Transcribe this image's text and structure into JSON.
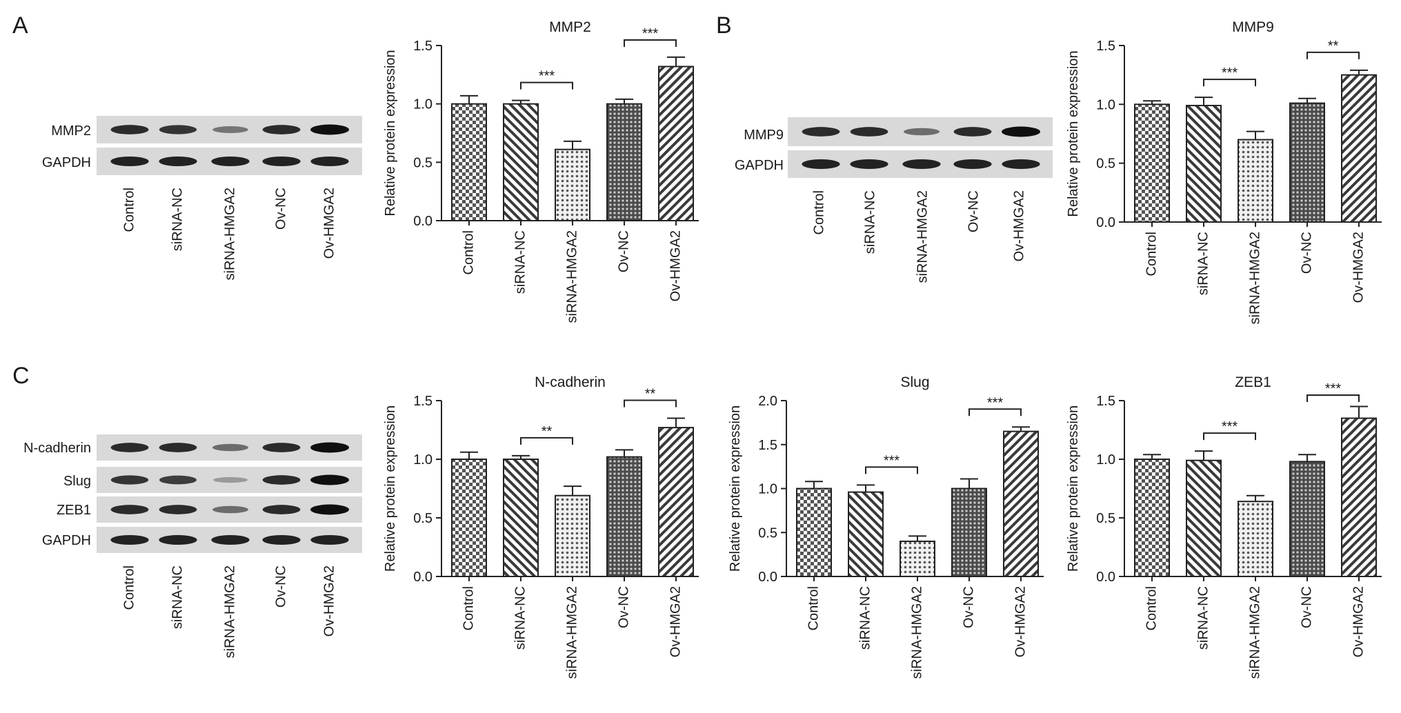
{
  "panels": [
    {
      "id": "A",
      "label": "A"
    },
    {
      "id": "B",
      "label": "B"
    },
    {
      "id": "C",
      "label": "C"
    }
  ],
  "blots": [
    {
      "panel": "A",
      "proteins": [
        "MMP2",
        "GAPDH"
      ],
      "lanes": [
        "Control",
        "siRNA-NC",
        "siRNA-HMGA2",
        "Ov-NC",
        "Ov-HMGA2"
      ],
      "intensity": [
        [
          0.85,
          0.8,
          0.45,
          0.85,
          1.0
        ],
        [
          0.9,
          0.9,
          0.9,
          0.9,
          0.9
        ]
      ]
    },
    {
      "panel": "B",
      "proteins": [
        "MMP9",
        "GAPDH"
      ],
      "lanes": [
        "Control",
        "siRNA-NC",
        "siRNA-HMGA2",
        "Ov-NC",
        "Ov-HMGA2"
      ],
      "intensity": [
        [
          0.85,
          0.85,
          0.5,
          0.85,
          1.0
        ],
        [
          0.9,
          0.9,
          0.9,
          0.9,
          0.9
        ]
      ]
    },
    {
      "panel": "C",
      "proteins": [
        "N-cadherin",
        "Slug",
        "ZEB1",
        "GAPDH"
      ],
      "lanes": [
        "Control",
        "siRNA-NC",
        "siRNA-HMGA2",
        "Ov-NC",
        "Ov-HMGA2"
      ],
      "intensity": [
        [
          0.85,
          0.85,
          0.5,
          0.85,
          1.0
        ],
        [
          0.8,
          0.75,
          0.25,
          0.85,
          1.0
        ],
        [
          0.85,
          0.85,
          0.5,
          0.85,
          1.0
        ],
        [
          0.9,
          0.9,
          0.9,
          0.9,
          0.9
        ]
      ]
    }
  ],
  "colors": {
    "bar_fill": "#ffffff",
    "pattern_ink": "#3a3a3a",
    "blot_background": "#d9d9d9",
    "band": "#141414"
  },
  "chart_data": [
    {
      "type": "bar",
      "panel": "A",
      "title": "MMP2",
      "ylabel": "Relative protein expression",
      "categories": [
        "Control",
        "siRNA-NC",
        "siRNA-HMGA2",
        "Ov-NC",
        "Ov-HMGA2"
      ],
      "values": [
        1.0,
        1.0,
        0.61,
        1.0,
        1.32
      ],
      "errors": [
        0.07,
        0.03,
        0.07,
        0.04,
        0.08
      ],
      "ylim": [
        0,
        1.5
      ],
      "yticks": [
        "0.0",
        "0.5",
        "1.0",
        "1.5"
      ],
      "significance": [
        {
          "from": 1,
          "to": 2,
          "label": "***"
        },
        {
          "from": 3,
          "to": 4,
          "label": "***"
        }
      ]
    },
    {
      "type": "bar",
      "panel": "B",
      "title": "MMP9",
      "ylabel": "Relative protein expression",
      "categories": [
        "Control",
        "siRNA-NC",
        "siRNA-HMGA2",
        "Ov-NC",
        "Ov-HMGA2"
      ],
      "values": [
        1.0,
        0.99,
        0.7,
        1.01,
        1.25
      ],
      "errors": [
        0.03,
        0.07,
        0.07,
        0.04,
        0.04
      ],
      "ylim": [
        0,
        1.5
      ],
      "yticks": [
        "0.0",
        "0.5",
        "1.0",
        "1.5"
      ],
      "significance": [
        {
          "from": 1,
          "to": 2,
          "label": "***"
        },
        {
          "from": 3,
          "to": 4,
          "label": "**"
        }
      ]
    },
    {
      "type": "bar",
      "panel": "C",
      "title": "N-cadherin",
      "ylabel": "Relative protein expression",
      "categories": [
        "Control",
        "siRNA-NC",
        "siRNA-HMGA2",
        "Ov-NC",
        "Ov-HMGA2"
      ],
      "values": [
        1.0,
        1.0,
        0.69,
        1.02,
        1.27
      ],
      "errors": [
        0.06,
        0.03,
        0.08,
        0.06,
        0.08
      ],
      "ylim": [
        0,
        1.5
      ],
      "yticks": [
        "0.0",
        "0.5",
        "1.0",
        "1.5"
      ],
      "significance": [
        {
          "from": 1,
          "to": 2,
          "label": "**"
        },
        {
          "from": 3,
          "to": 4,
          "label": "**"
        }
      ]
    },
    {
      "type": "bar",
      "panel": "C",
      "title": "Slug",
      "ylabel": "Relative protein expression",
      "categories": [
        "Control",
        "siRNA-NC",
        "siRNA-HMGA2",
        "Ov-NC",
        "Ov-HMGA2"
      ],
      "values": [
        1.0,
        0.96,
        0.4,
        1.0,
        1.65
      ],
      "errors": [
        0.08,
        0.08,
        0.06,
        0.11,
        0.05
      ],
      "ylim": [
        0,
        2.0
      ],
      "yticks": [
        "0.0",
        "0.5",
        "1.0",
        "1.5",
        "2.0"
      ],
      "significance": [
        {
          "from": 1,
          "to": 2,
          "label": "***"
        },
        {
          "from": 3,
          "to": 4,
          "label": "***"
        }
      ]
    },
    {
      "type": "bar",
      "panel": "C",
      "title": "ZEB1",
      "ylabel": "Relative protein expression",
      "categories": [
        "Control",
        "siRNA-NC",
        "siRNA-HMGA2",
        "Ov-NC",
        "Ov-HMGA2"
      ],
      "values": [
        1.0,
        0.99,
        0.64,
        0.98,
        1.35
      ],
      "errors": [
        0.04,
        0.08,
        0.05,
        0.06,
        0.1
      ],
      "ylim": [
        0,
        1.5
      ],
      "yticks": [
        "0.0",
        "0.5",
        "1.0",
        "1.5"
      ],
      "significance": [
        {
          "from": 1,
          "to": 2,
          "label": "***"
        },
        {
          "from": 3,
          "to": 4,
          "label": "***"
        }
      ]
    }
  ]
}
